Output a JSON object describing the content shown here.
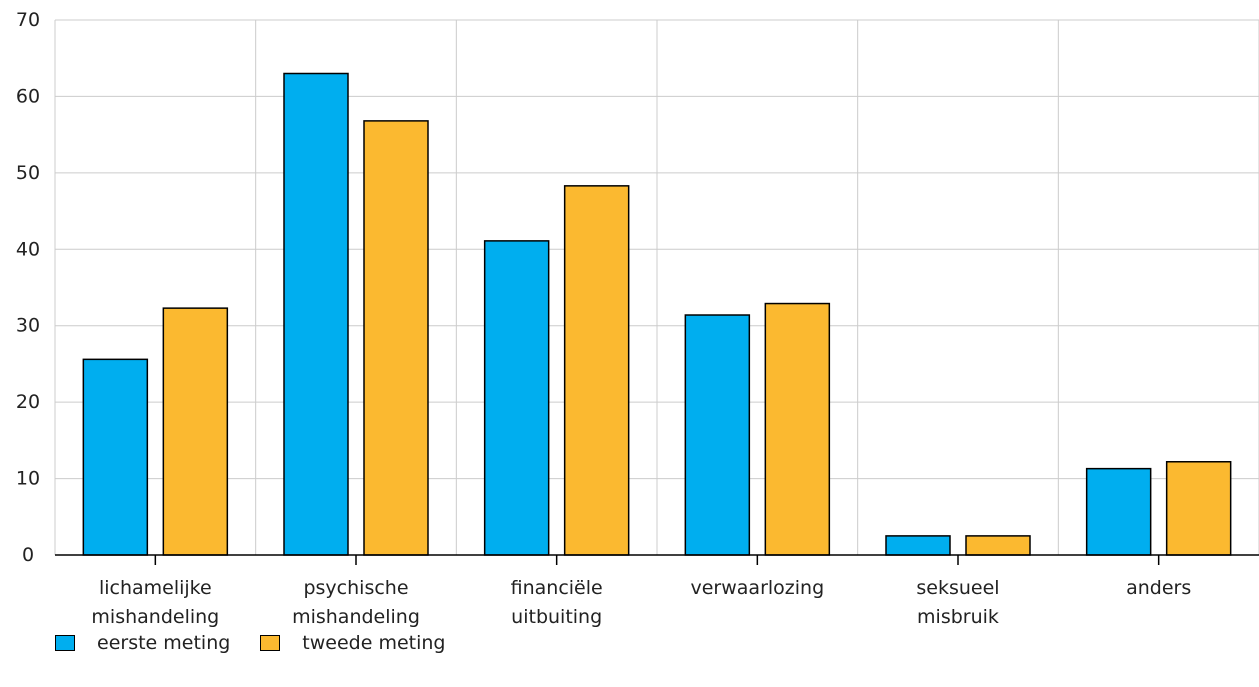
{
  "chart_data": {
    "type": "bar",
    "categories": [
      [
        "lichamelijke",
        "mishandeling"
      ],
      [
        "psychische",
        "mishandeling"
      ],
      [
        "financiële",
        "uitbuiting"
      ],
      [
        "verwaarlozing"
      ],
      [
        "seksueel",
        "misbruik"
      ],
      [
        "anders"
      ]
    ],
    "series": [
      {
        "name": "eerste meting",
        "color": "#00aeef",
        "values": [
          25.6,
          63.0,
          41.1,
          31.4,
          2.5,
          11.3
        ]
      },
      {
        "name": "tweede meting",
        "color": "#fbb930",
        "values": [
          32.3,
          56.8,
          48.3,
          32.9,
          2.5,
          12.2
        ]
      }
    ],
    "ylim": [
      0,
      70
    ],
    "yticks": [
      0,
      10,
      20,
      30,
      40,
      50,
      60,
      70
    ],
    "grid": true,
    "legend_position": "bottom-left"
  }
}
